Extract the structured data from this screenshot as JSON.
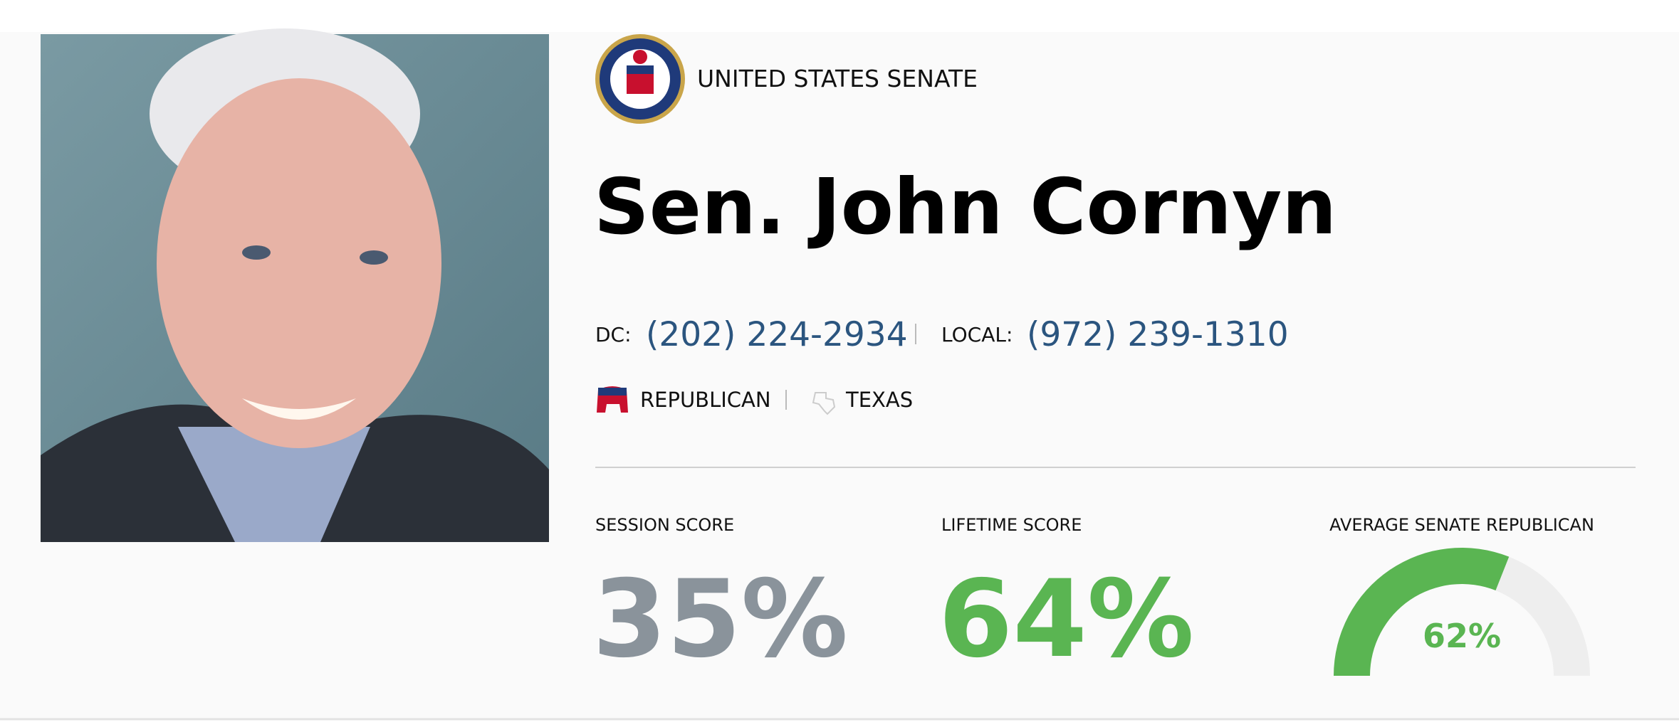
{
  "header": {
    "chamber": "UNITED STATES SENATE",
    "name": "Sen. John Cornyn"
  },
  "contact": {
    "dc_label": "DC:",
    "dc_phone": "(202) 224-2934",
    "local_label": "LOCAL:",
    "local_phone": "(972) 239-1310"
  },
  "affiliation": {
    "party": "REPUBLICAN",
    "state": "TEXAS"
  },
  "scores": {
    "session": {
      "label": "SESSION SCORE",
      "value": "35%"
    },
    "lifetime": {
      "label": "LIFETIME SCORE",
      "value": "64%"
    },
    "average": {
      "label": "AVERAGE SENATE REPUBLICAN",
      "gauge": {
        "value": 62,
        "label": "62%"
      },
      "gauge_range": [
        0,
        100
      ]
    }
  }
}
